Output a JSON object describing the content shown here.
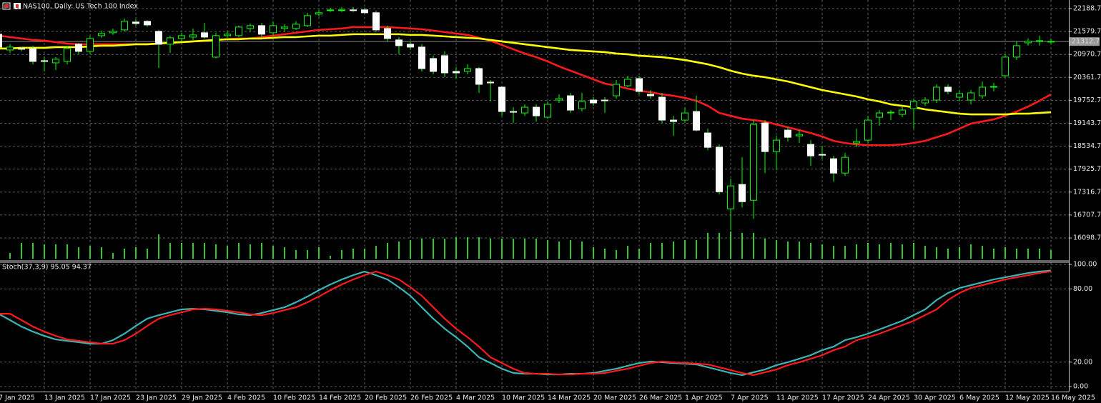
{
  "chart_data": [
    {
      "type": "candlestick",
      "title": "NAS100, Daily:  US Tech 100 Index",
      "categories": [
        "7 Jan 2025",
        null,
        null,
        null,
        "13 Jan 2025",
        null,
        null,
        null,
        "17 Jan 2025",
        null,
        null,
        null,
        "23 Jan 2025",
        null,
        null,
        null,
        "29 Jan 2025",
        null,
        null,
        null,
        "4 Feb 2025",
        null,
        null,
        null,
        "10 Feb 2025",
        null,
        null,
        null,
        "14 Feb 2025",
        null,
        null,
        null,
        "20 Feb 2025",
        null,
        null,
        null,
        "26 Feb 2025",
        null,
        null,
        null,
        "4 Mar 2025",
        null,
        null,
        null,
        "10 Mar 2025",
        null,
        null,
        null,
        "14 Mar 2025",
        null,
        null,
        null,
        "20 Mar 2025",
        null,
        null,
        null,
        "26 Mar 2025",
        null,
        null,
        null,
        "1 Apr 2025",
        null,
        null,
        null,
        "7 Apr 2025",
        null,
        null,
        null,
        "11 Apr 2025",
        null,
        null,
        null,
        "17 Apr 2025",
        null,
        null,
        null,
        "24 Apr 2025",
        null,
        null,
        null,
        "30 Apr 2025",
        null,
        null,
        null,
        "6 May 2025",
        null,
        null,
        null,
        "12 May 2025",
        null,
        null,
        null,
        "16 May 2025"
      ],
      "open": [
        21508,
        21090,
        21128,
        21128,
        20805,
        20748,
        20786,
        21242,
        21052,
        21470,
        21546,
        21622,
        21831,
        21850,
        21584,
        21242,
        21394,
        21432,
        21546,
        20900,
        21470,
        21470,
        21660,
        21736,
        21546,
        21660,
        21660,
        21736,
        22040,
        22135,
        22154,
        22154,
        22154,
        22078,
        21660,
        21356,
        21242,
        21166,
        20862,
        20938,
        20520,
        20520,
        20596,
        20235,
        20102,
        19456,
        19418,
        19570,
        19304,
        19760,
        19874,
        19532,
        19760,
        19760,
        19874,
        20140,
        20330,
        19912,
        19836,
        19228,
        19228,
        19456,
        18886,
        18506,
        16872,
        17518,
        17100,
        19152,
        18392,
        18962,
        18810,
        18582,
        18316,
        18202,
        17822,
        18620,
        18696,
        19304,
        19418,
        19380,
        19532,
        19684,
        19760,
        20102,
        19836,
        19760,
        19874,
        20102,
        20406,
        20900,
        21280,
        21318,
        21318
      ],
      "high": [
        21565,
        21242,
        21166,
        21204,
        20900,
        20900,
        21204,
        21280,
        21470,
        21603,
        21660,
        21926,
        21907,
        21888,
        21622,
        21470,
        21546,
        21660,
        21812,
        21546,
        21584,
        21736,
        21793,
        21812,
        21850,
        21774,
        21850,
        22078,
        22154,
        22211,
        22230,
        22230,
        22211,
        22135,
        21736,
        21432,
        21318,
        21242,
        20938,
        21052,
        20634,
        20710,
        20634,
        20292,
        20140,
        19570,
        19646,
        19646,
        19722,
        19912,
        19950,
        19950,
        19836,
        19836,
        20292,
        20406,
        20406,
        20026,
        19950,
        19342,
        19570,
        19874,
        19000,
        18582,
        17670,
        18240,
        19228,
        19228,
        18810,
        19038,
        18962,
        18696,
        18544,
        18278,
        18354,
        19000,
        19342,
        19494,
        19494,
        19570,
        19798,
        19836,
        20178,
        20178,
        20026,
        20026,
        20254,
        20216,
        20976,
        21318,
        21394,
        21470,
        21394
      ],
      "low": [
        21090,
        21014,
        21052,
        20710,
        20520,
        20558,
        20710,
        20976,
        20976,
        21413,
        21489,
        21584,
        21736,
        21698,
        20615,
        21014,
        21318,
        21356,
        21394,
        20862,
        21413,
        21432,
        21584,
        21432,
        21470,
        21584,
        21622,
        21698,
        21983,
        22097,
        22097,
        22097,
        22040,
        21565,
        21318,
        20976,
        21090,
        20520,
        20444,
        20368,
        20330,
        20444,
        19950,
        19722,
        19342,
        19152,
        19342,
        19190,
        19266,
        19684,
        19418,
        19456,
        19608,
        19418,
        19798,
        20102,
        19912,
        19798,
        19152,
        18810,
        19152,
        18924,
        18430,
        17252,
        16302,
        16910,
        16606,
        17822,
        17898,
        18658,
        18620,
        18012,
        18202,
        17594,
        17746,
        18506,
        18620,
        19076,
        19228,
        19304,
        19000,
        19608,
        19684,
        19912,
        19722,
        19646,
        19798,
        19988,
        20368,
        20824,
        21204,
        21204,
        21242
      ],
      "close": [
        21166,
        21166,
        21109,
        20786,
        20786,
        20843,
        21128,
        21052,
        21394,
        21527,
        21584,
        21850,
        21793,
        21755,
        21242,
        21413,
        21470,
        21489,
        21432,
        21470,
        21508,
        21698,
        21736,
        21508,
        21736,
        21698,
        21774,
        22002,
        22078,
        22154,
        22154,
        22135,
        22078,
        21622,
        21394,
        21204,
        21166,
        20596,
        20520,
        20482,
        20482,
        20596,
        20178,
        20216,
        19456,
        19437,
        19570,
        19342,
        19646,
        19798,
        19494,
        19722,
        19684,
        19741,
        20178,
        20311,
        19988,
        19874,
        19228,
        19190,
        19418,
        18962,
        18506,
        17328,
        17480,
        17062,
        19114,
        18392,
        18696,
        18772,
        18848,
        18278,
        18297,
        17822,
        18240,
        18658,
        19228,
        19418,
        19437,
        19494,
        19722,
        19760,
        20102,
        19988,
        19931,
        19950,
        20102,
        20121,
        20900,
        21204,
        21318,
        21337,
        21318
      ],
      "bull_color": "#000000",
      "bear_color": "#ffffff",
      "wick_color": "#00ff00",
      "series": [
        {
          "color": "#ff1a1a",
          "values": [
            21470,
            21432,
            21394,
            21356,
            21337,
            21299,
            21261,
            21242,
            21242,
            21242,
            21242,
            21242,
            21242,
            21242,
            21261,
            21280,
            21299,
            21318,
            21337,
            21356,
            21375,
            21394,
            21394,
            21432,
            21470,
            21508,
            21546,
            21584,
            21622,
            21641,
            21660,
            21698,
            21698,
            21698,
            21698,
            21679,
            21660,
            21641,
            21603,
            21565,
            21527,
            21489,
            21413,
            21337,
            21223,
            21109,
            20995,
            20900,
            20786,
            20653,
            20539,
            20425,
            20311,
            20197,
            20140,
            20064,
            20007,
            19969,
            19912,
            19874,
            19817,
            19741,
            19608,
            19418,
            19342,
            19266,
            19228,
            19190,
            19114,
            19038,
            18962,
            18886,
            18791,
            18677,
            18620,
            18582,
            18563,
            18563,
            18563,
            18582,
            18620,
            18677,
            18772,
            18867,
            19000,
            19133,
            19190,
            19247,
            19342,
            19456,
            19589,
            19741,
            19912
          ]
        },
        {
          "color": "#ffff00",
          "values": [
            21128,
            21128,
            21147,
            21147,
            21147,
            21166,
            21166,
            21166,
            21185,
            21204,
            21204,
            21223,
            21242,
            21242,
            21261,
            21280,
            21299,
            21318,
            21337,
            21356,
            21375,
            21375,
            21394,
            21394,
            21413,
            21432,
            21432,
            21451,
            21470,
            21470,
            21489,
            21508,
            21508,
            21508,
            21508,
            21508,
            21489,
            21489,
            21470,
            21451,
            21432,
            21413,
            21394,
            21356,
            21318,
            21280,
            21242,
            21204,
            21166,
            21128,
            21090,
            21071,
            21052,
            21033,
            20995,
            20976,
            20938,
            20919,
            20900,
            20862,
            20824,
            20767,
            20710,
            20634,
            20539,
            20463,
            20406,
            20368,
            20311,
            20254,
            20178,
            20102,
            20026,
            19969,
            19912,
            19855,
            19779,
            19722,
            19646,
            19608,
            19570,
            19513,
            19475,
            19437,
            19399,
            19380,
            19380,
            19380,
            19380,
            19399,
            19399,
            19418,
            19437
          ]
        }
      ],
      "volume": [
        22,
        8,
        22,
        22,
        20,
        20,
        20,
        16,
        18,
        16,
        8,
        14,
        16,
        14,
        34,
        22,
        22,
        22,
        22,
        20,
        18,
        22,
        20,
        22,
        18,
        16,
        12,
        12,
        16,
        4,
        12,
        14,
        14,
        18,
        22,
        24,
        26,
        28,
        28,
        28,
        30,
        30,
        30,
        28,
        28,
        28,
        28,
        28,
        26,
        24,
        26,
        24,
        16,
        14,
        12,
        18,
        14,
        22,
        22,
        24,
        26,
        26,
        36,
        36,
        38,
        36,
        36,
        28,
        26,
        24,
        24,
        22,
        20,
        18,
        18,
        20,
        22,
        20,
        22,
        20,
        22,
        18,
        16,
        14,
        16,
        20,
        18,
        14,
        16,
        14,
        14,
        14,
        12
      ],
      "volume_lim": [
        0,
        100
      ],
      "volume_color": "#32cd32",
      "last_price": 21312.7,
      "ylim": [
        15511.3,
        22416.3
      ],
      "yticks": [
        22188.7,
        21579.7,
        20970.7,
        20361.7,
        19752.7,
        19143.7,
        18534.7,
        17925.7,
        17316.7,
        16707.7,
        16098.7
      ],
      "grid": true
    },
    {
      "type": "line",
      "label": "Stoch(37,3,9) 95.05 94.37",
      "series": [
        {
          "color": "#3cb4b4",
          "values": [
            59.6,
            54.4,
            49.1,
            45.0,
            41.5,
            38.6,
            37.4,
            36.3,
            35.1,
            35.1,
            38.0,
            43.3,
            49.7,
            55.6,
            58.5,
            60.8,
            63.2,
            63.7,
            63.2,
            62.0,
            60.8,
            59.1,
            58.5,
            60.2,
            62.6,
            64.9,
            69.0,
            73.7,
            78.9,
            83.6,
            87.7,
            91.2,
            94.2,
            91.2,
            87.7,
            81.3,
            74.3,
            64.9,
            55.6,
            47.4,
            40.4,
            32.7,
            24.0,
            19.3,
            14.6,
            11.1,
            10.5,
            10.5,
            9.9,
            9.9,
            10.5,
            10.5,
            11.1,
            12.9,
            14.6,
            17.0,
            19.3,
            20.5,
            19.9,
            19.3,
            18.7,
            18.1,
            15.8,
            13.5,
            11.1,
            9.4,
            11.7,
            14.0,
            17.5,
            19.9,
            22.8,
            25.7,
            29.8,
            32.7,
            38.0,
            40.4,
            43.3,
            46.8,
            50.3,
            53.8,
            58.5,
            63.2,
            70.8,
            76.6,
            80.7,
            83.0,
            85.4,
            87.7,
            89.5,
            91.2,
            93.0,
            94.2,
            95.05
          ]
        },
        {
          "color": "#ff1a1a",
          "values": [
            59.6,
            59.6,
            54.4,
            49.1,
            45.0,
            41.5,
            38.6,
            37.4,
            36.3,
            35.1,
            35.1,
            38.0,
            43.3,
            49.7,
            55.6,
            58.5,
            60.8,
            63.2,
            63.7,
            63.2,
            62.0,
            60.8,
            59.1,
            58.5,
            60.2,
            62.6,
            64.9,
            69.0,
            73.7,
            78.9,
            83.6,
            87.7,
            91.2,
            94.2,
            91.2,
            87.7,
            81.3,
            74.3,
            64.9,
            55.6,
            47.4,
            40.4,
            32.7,
            24.0,
            19.3,
            14.6,
            11.1,
            10.5,
            10.5,
            9.9,
            9.9,
            10.5,
            10.5,
            11.1,
            12.9,
            14.6,
            17.0,
            19.3,
            20.5,
            19.9,
            19.3,
            18.7,
            18.1,
            15.8,
            13.5,
            11.1,
            9.4,
            11.7,
            14.0,
            17.5,
            19.9,
            22.8,
            25.7,
            29.8,
            32.7,
            38.0,
            40.4,
            43.3,
            46.8,
            50.3,
            53.8,
            58.5,
            63.2,
            70.8,
            76.6,
            80.7,
            83.0,
            85.4,
            87.7,
            89.5,
            91.2,
            93.0,
            94.37
          ]
        }
      ],
      "ylim": [
        -4.1,
        101.8
      ],
      "yticks": [
        {
          "value": 100,
          "label": "100.00"
        },
        {
          "value": 80,
          "label": "80.00"
        },
        {
          "value": 20,
          "label": "20.00"
        },
        {
          "value": 0,
          "label": "0.00"
        }
      ],
      "grid": true
    }
  ]
}
